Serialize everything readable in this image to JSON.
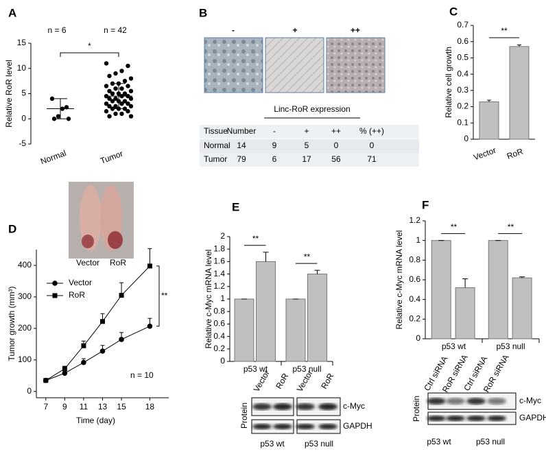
{
  "panel_labels": [
    "A",
    "B",
    "C",
    "D",
    "E",
    "F"
  ],
  "chart_data": [
    {
      "type": "dot",
      "y_label": "Relative RoR level",
      "categories": [
        "Normal",
        "Tumor"
      ],
      "values": [
        [
          4,
          2.3,
          2,
          0.5,
          0,
          0
        ],
        [
          11,
          10.5,
          9.5,
          9,
          8.5,
          8,
          7.5,
          7,
          7,
          6.5,
          6.5,
          6,
          6,
          5.5,
          5.5,
          5,
          5,
          5,
          4.5,
          4.5,
          4.5,
          4,
          4,
          4,
          3.5,
          3.5,
          3.5,
          3,
          3,
          3,
          2.5,
          2.5,
          2.5,
          2,
          2,
          2,
          1.5,
          1.5,
          1,
          1,
          0.5,
          0.5
        ]
      ],
      "means": [
        2,
        4.5
      ],
      "sd": [
        2,
        2.5
      ],
      "color": "#000000",
      "ylim": [
        -5,
        15
      ],
      "yticks": [
        -5,
        0,
        5,
        10,
        15
      ],
      "counts": [
        "n = 6",
        "n = 42"
      ],
      "annotations": [
        "*"
      ]
    },
    {
      "type": "bar",
      "y_label": "Relative cell growth",
      "categories": [
        "Vector",
        "RoR"
      ],
      "values": [
        0.23,
        0.57
      ],
      "errors": [
        0.01,
        0.01
      ],
      "color": "#c0c0c0",
      "ylim": [
        0,
        0.7
      ],
      "yticks": [
        0,
        0.1,
        0.2,
        0.3,
        0.4,
        0.5,
        0.6,
        0.7
      ],
      "annotations": [
        "**"
      ]
    },
    {
      "type": "line",
      "x_label": "Time (day)",
      "y_label": "Tumor growth (mm³)",
      "x": [
        7,
        9,
        11,
        13,
        15,
        18
      ],
      "series": [
        {
          "name": "Vector",
          "marker": "circle",
          "color": "#000000",
          "values": [
            35,
            58,
            92,
            128,
            165,
            207
          ],
          "errors": [
            5,
            8,
            12,
            18,
            22,
            25
          ]
        },
        {
          "name": "RoR",
          "marker": "square",
          "color": "#000000",
          "values": [
            35,
            72,
            145,
            222,
            305,
            398
          ],
          "errors": [
            5,
            8,
            15,
            25,
            40,
            55
          ]
        }
      ],
      "xlim": [
        6,
        20
      ],
      "xticks": [
        7,
        9,
        11,
        13,
        15,
        18
      ],
      "ylim": [
        -20,
        450
      ],
      "yticks": [
        0,
        100,
        200,
        300,
        400
      ],
      "annotations": [
        "**",
        "n = 10"
      ]
    },
    {
      "type": "grouped-bar",
      "y_label": "Relative c-Myc mRNA level",
      "groups": [
        "p53 wt",
        "p53 null"
      ],
      "values": [
        1,
        1.6,
        1,
        1.4
      ],
      "errors": [
        0,
        0.15,
        0,
        0.06
      ],
      "color": "#c0c0c0",
      "ylim": [
        0,
        2
      ],
      "yticks": [
        0,
        0.2,
        0.4,
        0.6,
        0.8,
        1,
        1.2,
        1.4,
        1.6,
        1.8,
        2
      ],
      "annotations": [
        "**",
        "**"
      ]
    },
    {
      "type": "grouped-bar",
      "y_label": "Relative c-Myc mRNA level",
      "groups": [
        "p53 wt",
        "p53 null"
      ],
      "values": [
        1,
        0.52,
        1,
        0.62
      ],
      "errors": [
        0,
        0.09,
        0,
        0.01
      ],
      "color": "#c0c0c0",
      "ylim": [
        0,
        1.2
      ],
      "yticks": [
        0,
        0.2,
        0.4,
        0.6,
        0.8,
        1,
        1.2
      ],
      "annotations": [
        "**",
        "**"
      ]
    }
  ],
  "ihc": {
    "labels": [
      "-",
      "+",
      "++"
    ],
    "title": "Linc-RoR expression"
  },
  "table": {
    "header": [
      "Tissue",
      "Number",
      "-",
      "+",
      "++",
      "% (++)"
    ],
    "rows": [
      [
        "Normal",
        14,
        9,
        5,
        0,
        0
      ],
      [
        "Tumor",
        79,
        6,
        17,
        56,
        71
      ]
    ]
  },
  "xenograft": {
    "labels": [
      "Vector",
      "RoR"
    ]
  },
  "blots": [
    {
      "protein_label": "Protein",
      "lanes": [
        "Vector",
        "RoR",
        "Vector",
        "RoR"
      ],
      "rows": [
        "c-Myc",
        "GAPDH"
      ],
      "groups": [
        "p53 wt",
        "p53 null"
      ]
    },
    {
      "protein_label": "Protein",
      "lanes": [
        "Ctrl siRNA",
        "RoR siRNA",
        "Ctrl siRNA",
        "RoR siRNA"
      ],
      "rows": [
        "c-Myc",
        "GAPDH"
      ],
      "groups": [
        "p53 wt",
        "p53 null"
      ]
    }
  ]
}
